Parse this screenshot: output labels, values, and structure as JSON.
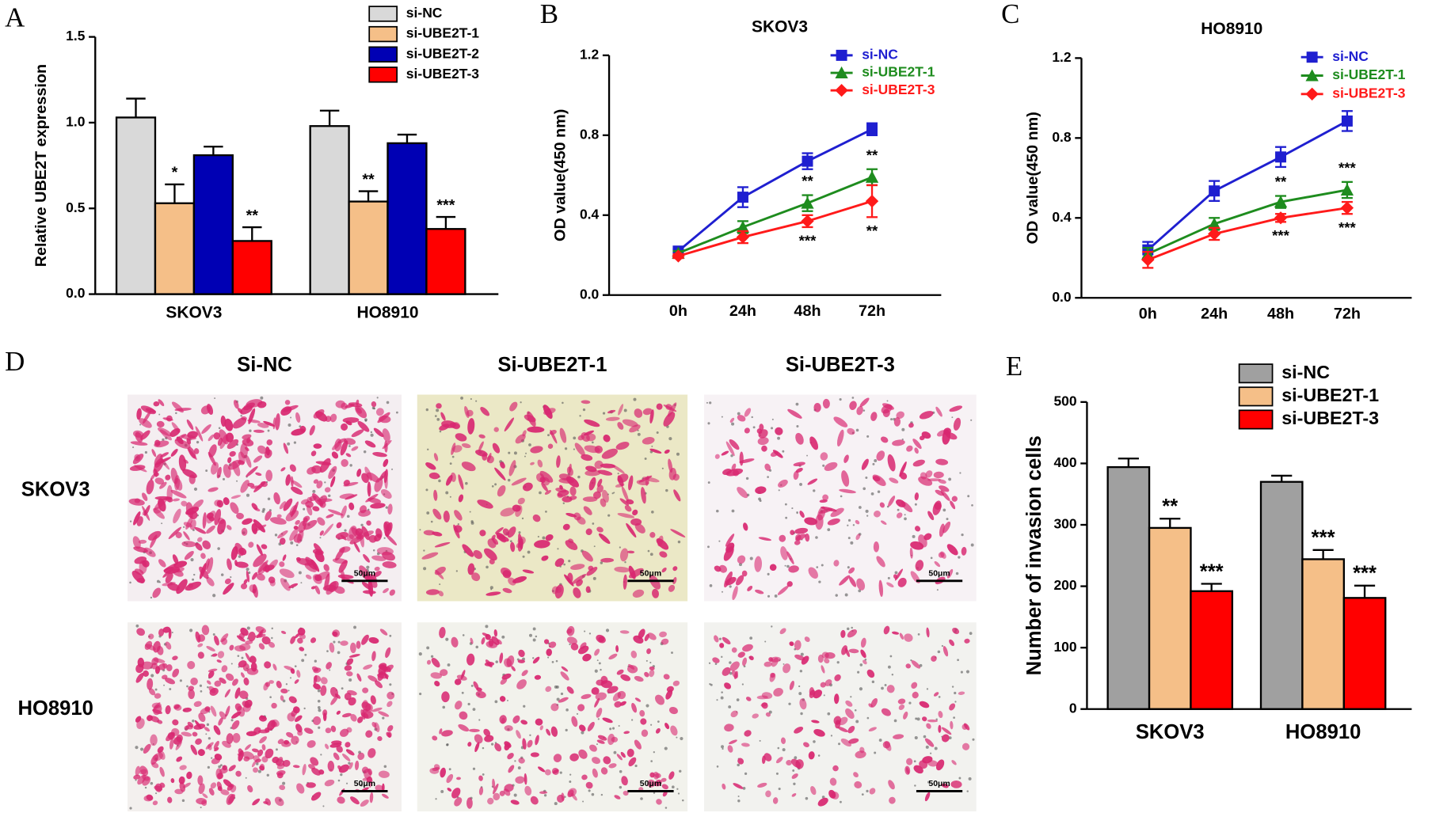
{
  "chart_data": [
    {
      "type": "bar",
      "panel": "A",
      "y_label": "Relative UBE2T expression",
      "categories": [
        "SKOV3",
        "HO8910"
      ],
      "ylim": [
        0,
        1.5
      ],
      "yticks": [
        {
          "value": 0,
          "label": "0.0"
        },
        {
          "value": 0.5,
          "label": "0.5"
        },
        {
          "value": 1,
          "label": "1.0"
        },
        {
          "value": 1.5,
          "label": "1.5"
        }
      ],
      "series": [
        {
          "name": "si-NC",
          "color": "#d9d9d9",
          "values": [
            1.03,
            0.98
          ],
          "errors": [
            0.11,
            0.09
          ],
          "annotations": [
            null,
            null
          ]
        },
        {
          "name": "si-UBE2T-1",
          "color": "#f5bf88",
          "values": [
            0.53,
            0.54
          ],
          "errors": [
            0.11,
            0.06
          ],
          "annotations": [
            "*",
            "**"
          ]
        },
        {
          "name": "si-UBE2T-2",
          "color": "#0000b4",
          "values": [
            0.81,
            0.88
          ],
          "errors": [
            0.05,
            0.05
          ],
          "annotations": [
            null,
            null
          ]
        },
        {
          "name": "si-UBE2T-3",
          "color": "#ff0000",
          "values": [
            0.31,
            0.38
          ],
          "errors": [
            0.08,
            0.07
          ],
          "annotations": [
            "**",
            "***"
          ]
        }
      ]
    },
    {
      "type": "line",
      "panel": "B",
      "title": "SKOV3",
      "y_label": "OD value(450 nm)",
      "categories": [
        "0h",
        "24h",
        "48h",
        "72h"
      ],
      "ylim": [
        0,
        1.2
      ],
      "yticks": [
        {
          "value": 0,
          "label": "0.0"
        },
        {
          "value": 0.4,
          "label": "0.4"
        },
        {
          "value": 0.8,
          "label": "0.8"
        },
        {
          "value": 1.2,
          "label": "1.2"
        }
      ],
      "series": [
        {
          "name": "si-NC",
          "color": "#1f1fd0",
          "marker": "square",
          "values": [
            0.22,
            0.49,
            0.67,
            0.83
          ],
          "errors": [
            0.01,
            0.05,
            0.04,
            0.03
          ],
          "annotations": [
            null,
            null,
            null,
            null
          ]
        },
        {
          "name": "si-UBE2T-1",
          "color": "#1e8c1e",
          "marker": "triangle",
          "values": [
            0.21,
            0.34,
            0.46,
            0.59
          ],
          "errors": [
            0.01,
            0.03,
            0.04,
            0.04
          ],
          "annotations": [
            null,
            null,
            "**",
            "**"
          ]
        },
        {
          "name": "si-UBE2T-3",
          "color": "#ff1a1a",
          "marker": "diamond",
          "values": [
            0.195,
            0.29,
            0.37,
            0.47
          ],
          "errors": [
            0.01,
            0.03,
            0.03,
            0.08
          ],
          "annotations": [
            null,
            null,
            "***",
            "**"
          ]
        }
      ]
    },
    {
      "type": "line",
      "panel": "C",
      "title": "HO8910",
      "y_label": "OD value(450 nm)",
      "categories": [
        "0h",
        "24h",
        "48h",
        "72h"
      ],
      "ylim": [
        0,
        1.2
      ],
      "yticks": [
        {
          "value": 0,
          "label": "0.0"
        },
        {
          "value": 0.4,
          "label": "0.4"
        },
        {
          "value": 0.8,
          "label": "0.8"
        },
        {
          "value": 1.2,
          "label": "1.2"
        }
      ],
      "series": [
        {
          "name": "si-NC",
          "color": "#1f1fd0",
          "marker": "square",
          "values": [
            0.24,
            0.535,
            0.705,
            0.885
          ],
          "errors": [
            0.04,
            0.05,
            0.05,
            0.05
          ],
          "annotations": [
            null,
            null,
            null,
            null
          ]
        },
        {
          "name": "si-UBE2T-1",
          "color": "#1e8c1e",
          "marker": "triangle",
          "values": [
            0.22,
            0.37,
            0.48,
            0.54
          ],
          "errors": [
            0.03,
            0.03,
            0.03,
            0.04
          ],
          "annotations": [
            null,
            null,
            "**",
            "***"
          ]
        },
        {
          "name": "si-UBE2T-3",
          "color": "#ff1a1a",
          "marker": "diamond",
          "values": [
            0.19,
            0.32,
            0.4,
            0.45
          ],
          "errors": [
            0.04,
            0.03,
            0.02,
            0.03
          ],
          "annotations": [
            null,
            null,
            "***",
            "***"
          ]
        }
      ]
    },
    {
      "type": "bar",
      "panel": "E",
      "y_label": "Number of invasion cells",
      "categories": [
        "SKOV3",
        "HO8910"
      ],
      "ylim": [
        0,
        500
      ],
      "yticks": [
        0,
        100,
        200,
        300,
        400,
        500
      ],
      "series": [
        {
          "name": "si-NC",
          "color": "#a0a0a0",
          "values": [
            394,
            370
          ],
          "errors": [
            14,
            10
          ],
          "annotations": [
            null,
            null
          ]
        },
        {
          "name": "si-UBE2T-1",
          "color": "#f5bf88",
          "values": [
            295,
            244
          ],
          "errors": [
            15,
            15
          ],
          "annotations": [
            "**",
            "***"
          ]
        },
        {
          "name": "si-UBE2T-3",
          "color": "#ff0000",
          "values": [
            192,
            181
          ],
          "errors": [
            12,
            20
          ],
          "annotations": [
            "***",
            "***"
          ]
        }
      ]
    }
  ],
  "micrographs": {
    "panel": "D",
    "columns": [
      "Si-NC",
      "Si-UBE2T-1",
      "Si-UBE2T-3"
    ],
    "rows": [
      "SKOV3",
      "HO8910"
    ],
    "scale_bar": "50μm"
  }
}
